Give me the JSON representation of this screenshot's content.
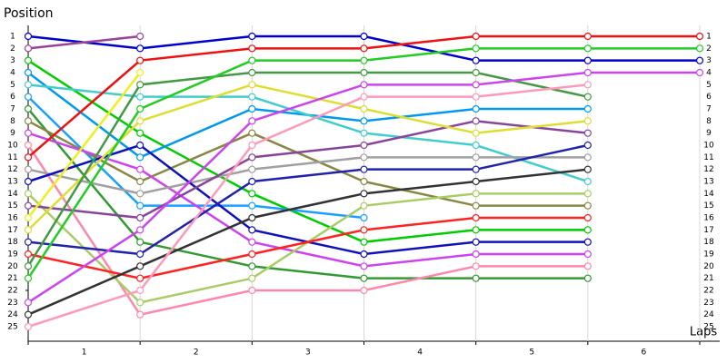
{
  "chart_data": {
    "type": "lap",
    "ylabel": "Position",
    "xlabel": "Laps",
    "laps": [
      "1",
      "2",
      "3",
      "4",
      "5",
      "6"
    ],
    "x": [
      0,
      1,
      2,
      3,
      4,
      5,
      6
    ],
    "xlim": [
      0,
      6
    ],
    "ylim": [
      1,
      25
    ],
    "y_inverted": true,
    "yticks": [
      1,
      2,
      3,
      4,
      5,
      6,
      7,
      8,
      9,
      10,
      11,
      12,
      13,
      14,
      15,
      16,
      17,
      18,
      19,
      20,
      21,
      22,
      23,
      24,
      25
    ],
    "grid": true,
    "series": [
      {
        "color": "#0000cc",
        "values": [
          1,
          2,
          1,
          1,
          3,
          3,
          3
        ]
      },
      {
        "color": "#994499",
        "values": [
          2,
          1,
          null,
          null,
          null,
          null,
          null
        ]
      },
      {
        "color": "#00cc00",
        "values": [
          3,
          9,
          14,
          18,
          17,
          17,
          null
        ]
      },
      {
        "color": "#0099ee",
        "values": [
          4,
          11,
          7,
          8,
          7,
          7,
          null
        ]
      },
      {
        "color": "#44cccc",
        "values": [
          5,
          6,
          6,
          9,
          10,
          13,
          null
        ]
      },
      {
        "color": "#1a9fff",
        "values": [
          6,
          15,
          15,
          16,
          null,
          null,
          null
        ]
      },
      {
        "color": "#339933",
        "values": [
          7,
          18,
          20,
          21,
          21,
          21,
          null
        ]
      },
      {
        "color": "#888844",
        "values": [
          8,
          13,
          9,
          13,
          15,
          15,
          null
        ]
      },
      {
        "color": "#cc44ee",
        "values": [
          9,
          12,
          18,
          20,
          19,
          19,
          null
        ]
      },
      {
        "color": "#ff88aa",
        "values": [
          10,
          24,
          22,
          22,
          20,
          20,
          null
        ]
      },
      {
        "color": "#ee1111",
        "values": [
          11,
          3,
          2,
          2,
          1,
          1,
          1
        ]
      },
      {
        "color": "#a0a0a0",
        "values": [
          12,
          14,
          12,
          11,
          11,
          11,
          null
        ]
      },
      {
        "color": "#1111bb",
        "values": [
          13,
          10,
          17,
          19,
          18,
          18,
          null
        ]
      },
      {
        "color": "#aacc66",
        "values": [
          14,
          23,
          21,
          15,
          14,
          14,
          null
        ]
      },
      {
        "color": "#884499",
        "values": [
          15,
          16,
          11,
          10,
          8,
          9,
          null
        ]
      },
      {
        "color": "#eeee22",
        "values": [
          16,
          4,
          null,
          null,
          null,
          null,
          null
        ]
      },
      {
        "color": "#dddd33",
        "values": [
          17,
          8,
          5,
          7,
          9,
          8,
          null
        ]
      },
      {
        "color": "#2222aa",
        "values": [
          18,
          19,
          13,
          12,
          12,
          10,
          null
        ]
      },
      {
        "color": "#ff2222",
        "values": [
          19,
          21,
          19,
          17,
          16,
          16,
          null
        ]
      },
      {
        "color": "#449944",
        "values": [
          20,
          5,
          4,
          4,
          4,
          6,
          null
        ]
      },
      {
        "color": "#22cc22",
        "values": [
          21,
          7,
          3,
          3,
          2,
          2,
          2
        ]
      },
      {
        "color": "#cc44ee",
        "values": [
          23,
          17,
          8,
          5,
          5,
          4,
          4
        ]
      },
      {
        "color": "#333333",
        "values": [
          24,
          20,
          16,
          14,
          13,
          12,
          null
        ]
      },
      {
        "color": "#ff99bb",
        "values": [
          25,
          22,
          10,
          6,
          6,
          5,
          null
        ]
      }
    ]
  }
}
